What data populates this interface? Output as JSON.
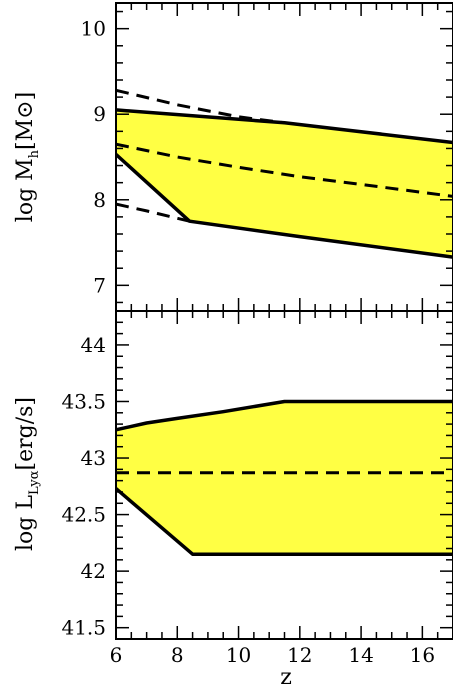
{
  "chart_data": [
    {
      "type": "area",
      "panel": "top",
      "ylabel_main": "log  M",
      "ylabel_sub": "h",
      "ylabel_tail": "[M",
      "ylabel_sun": "⊙",
      "ylabel_close": "]",
      "xlim": [
        6,
        17
      ],
      "ylim": [
        6.7,
        10.3
      ],
      "yticks_major": [
        7,
        8,
        9,
        10
      ],
      "ytick_labels": [
        "7",
        "8",
        "9",
        "10"
      ],
      "yticks_minor_step": 0.2,
      "shaded_region": {
        "color": "#ffff44",
        "upper": {
          "x": [
            6,
            11.5,
            17
          ],
          "y": [
            9.05,
            8.9,
            8.67
          ]
        },
        "lower": {
          "x": [
            6,
            8.4,
            12,
            17
          ],
          "y": [
            8.53,
            7.75,
            7.57,
            7.33
          ]
        }
      },
      "dashed_lines": [
        {
          "x": [
            6,
            8,
            10,
            11.5
          ],
          "y": [
            9.28,
            9.11,
            8.97,
            8.9
          ]
        },
        {
          "x": [
            6,
            8,
            10,
            12,
            14,
            17
          ],
          "y": [
            8.65,
            8.5,
            8.38,
            8.27,
            8.18,
            8.04
          ]
        },
        {
          "x": [
            6,
            7,
            8.4
          ],
          "y": [
            7.95,
            7.87,
            7.75
          ]
        }
      ]
    },
    {
      "type": "area",
      "panel": "bottom",
      "ylabel_main": "log  L",
      "ylabel_sub": "Lyα",
      "ylabel_tail": "[erg/s]",
      "xlabel": "z",
      "xlim": [
        6,
        17
      ],
      "ylim": [
        41.4,
        44.3
      ],
      "yticks_major": [
        41.5,
        42,
        42.5,
        43,
        43.5,
        44
      ],
      "ytick_labels": [
        "41.5",
        "42",
        "42.5",
        "43",
        "43.5",
        "44"
      ],
      "yticks_minor_step": 0.1,
      "xticks_major": [
        6,
        8,
        10,
        12,
        14,
        16
      ],
      "xtick_labels": [
        "6",
        "8",
        "10",
        "12",
        "14",
        "16"
      ],
      "xticks_minor_step": 0.5,
      "shaded_region": {
        "color": "#ffff44",
        "upper": {
          "x": [
            6,
            7,
            8,
            9.5,
            11.5,
            17
          ],
          "y": [
            43.25,
            43.31,
            43.35,
            43.41,
            43.5,
            43.5
          ]
        },
        "lower": {
          "x": [
            6,
            8.5,
            17
          ],
          "y": [
            42.73,
            42.15,
            42.15
          ]
        }
      },
      "dashed_lines": [
        {
          "x": [
            6,
            17
          ],
          "y": [
            42.87,
            42.87
          ]
        }
      ]
    }
  ]
}
